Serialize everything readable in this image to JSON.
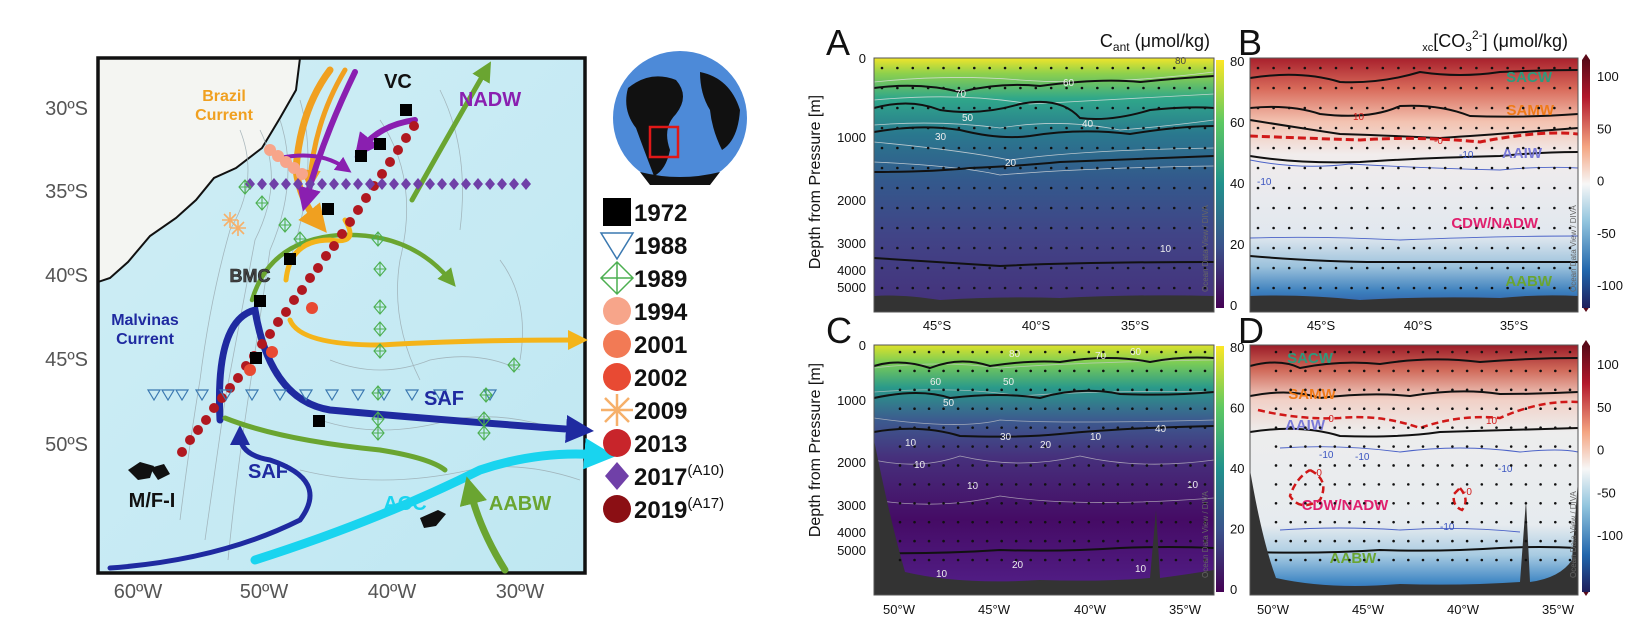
{
  "map": {
    "lat_ticks": [
      "30ºS",
      "35ºS",
      "40ºS",
      "45ºS",
      "50ºS"
    ],
    "lon_ticks": [
      "60ºW",
      "50ºW",
      "40ºW",
      "30ºW"
    ],
    "labels": {
      "brazil": [
        "Brazil",
        "Current"
      ],
      "vc": "VC",
      "nadw": "NADW",
      "bmc": "BMC",
      "malvinas": [
        "Malvinas",
        "Current"
      ],
      "saf1": "SAF",
      "saf2": "SAF",
      "mfi": "M/F-I",
      "acc": "ACC",
      "aabw": "AABW"
    },
    "colors": {
      "brazil": "#f0a020",
      "nadw": "#8a1fb0",
      "aabw": "#6aa531",
      "acc": "#19d4ef",
      "saf": "#1f2aa0",
      "bmc_arrow": "#f4b41a"
    }
  },
  "legend": [
    {
      "year": "1972",
      "sup": "",
      "marker": "square",
      "color": "#000000"
    },
    {
      "year": "1988",
      "sup": "",
      "marker": "triangle-down",
      "color": "#3a78b0"
    },
    {
      "year": "1989",
      "sup": "",
      "marker": "diamond-plus",
      "color": "#4caf50"
    },
    {
      "year": "1994",
      "sup": "",
      "marker": "circle",
      "color": "#f7a58a"
    },
    {
      "year": "2001",
      "sup": "",
      "marker": "circle",
      "color": "#f27a55"
    },
    {
      "year": "2002",
      "sup": "",
      "marker": "circle",
      "color": "#e84a33"
    },
    {
      "year": "2009",
      "sup": "",
      "marker": "asterisk",
      "color": "#f6b06a"
    },
    {
      "year": "2013",
      "sup": "",
      "marker": "circle",
      "color": "#c8252b"
    },
    {
      "year": "2017",
      "sup": "(A10)",
      "marker": "diamond",
      "color": "#7040a8"
    },
    {
      "year": "2019",
      "sup": "(A17)",
      "marker": "circle",
      "color": "#8b0f14"
    }
  ],
  "panels": {
    "A": {
      "letter": "A",
      "title": "C",
      "title_sub": "ant",
      "title_rest": " (μmol/kg)",
      "xticks": [
        "45°S",
        "40°S",
        "35°S"
      ]
    },
    "B": {
      "letter": "B",
      "title_pre": "xc",
      "title_main": "[CO",
      "title_sub": "3",
      "title_sup": "2-",
      "title_rest": "] (μmol/kg)",
      "xticks": [
        "45°S",
        "40°S",
        "35°S"
      ]
    },
    "C": {
      "letter": "C",
      "xticks": [
        "50°W",
        "45°W",
        "40°W",
        "35°W"
      ]
    },
    "D": {
      "letter": "D",
      "xticks": [
        "50°W",
        "45°W",
        "40°W",
        "35°W"
      ]
    }
  },
  "depth_axis": {
    "label": "Depth from Pressure [m]",
    "ticks": [
      "0",
      "1000",
      "2000",
      "3000",
      "4000",
      "5000"
    ]
  },
  "cbar_cant": {
    "ticks": [
      "80",
      "60",
      "40",
      "20",
      "0"
    ]
  },
  "cbar_co3": {
    "ticks": [
      "100",
      "50",
      "0",
      "-50",
      "-100"
    ]
  },
  "water_masses": {
    "B": [
      "SACW",
      "SAMW",
      "AAIW",
      "CDW/NADW",
      "AABW"
    ],
    "D": [
      "SACW",
      "SAMW",
      "AAIW",
      "CDW/NADW",
      "AABW"
    ],
    "colors": [
      "#2e9a7c",
      "#f07a18",
      "#7a7ad8",
      "#e0206e",
      "#6aa531"
    ]
  },
  "contour_labels": {
    "A": [
      "70",
      "60",
      "50",
      "40",
      "30",
      "20",
      "10",
      "80"
    ],
    "C": [
      "80",
      "70",
      "60",
      "60",
      "50",
      "50",
      "30",
      "10",
      "20",
      "40",
      "10",
      "10",
      "10",
      "10",
      "10",
      "20",
      "10"
    ],
    "B": [
      "10",
      "-0",
      "-10",
      "-10"
    ],
    "D": [
      "-0",
      "10",
      "-10",
      "-10",
      "-10",
      "-0",
      "-0",
      "-10"
    ]
  },
  "watermark": "Ocean Data View / DIVA"
}
